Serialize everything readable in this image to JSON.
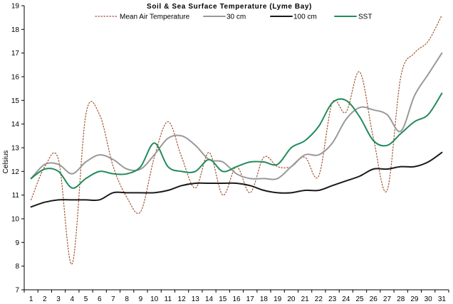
{
  "chart_data": {
    "type": "line",
    "title": "Soil & Sea Surface Temperature (Lyme Bay)",
    "xlabel": "",
    "ylabel": "Celsius",
    "x": [
      1,
      2,
      3,
      4,
      5,
      6,
      7,
      8,
      9,
      10,
      11,
      12,
      13,
      14,
      15,
      16,
      17,
      18,
      19,
      20,
      21,
      22,
      23,
      24,
      25,
      26,
      27,
      28,
      29,
      30,
      31
    ],
    "ylim": [
      7,
      19
    ],
    "yticks": [
      7,
      8,
      9,
      10,
      11,
      12,
      13,
      14,
      15,
      16,
      17,
      18,
      19
    ],
    "grid": false,
    "legend_position": "top",
    "series": [
      {
        "name": "Mean Air Temperature",
        "color": "#A0522D",
        "style": "dotted",
        "values": [
          10.8,
          12.2,
          12.5,
          8.1,
          14.4,
          14.4,
          12.2,
          10.9,
          10.3,
          12.6,
          14.1,
          12.6,
          11.3,
          12.8,
          11.0,
          12.2,
          11.1,
          12.6,
          12.2,
          12.2,
          12.6,
          11.8,
          14.9,
          14.5,
          16.2,
          13.4,
          11.2,
          16.0,
          17.0,
          17.5,
          18.6
        ]
      },
      {
        "name": "30 cm",
        "color": "#999999",
        "style": "solid",
        "values": [
          11.7,
          12.3,
          12.3,
          11.9,
          12.4,
          12.7,
          12.5,
          12.1,
          12.1,
          12.7,
          13.4,
          13.5,
          13.1,
          12.5,
          12.4,
          11.9,
          11.7,
          11.7,
          11.7,
          12.2,
          12.7,
          12.7,
          13.2,
          14.2,
          14.7,
          14.6,
          14.4,
          13.7,
          15.2,
          16.1,
          17.0
        ]
      },
      {
        "name": "100 cm",
        "color": "#1a1a1a",
        "style": "solid",
        "values": [
          10.5,
          10.7,
          10.8,
          10.8,
          10.8,
          10.8,
          11.1,
          11.1,
          11.1,
          11.1,
          11.2,
          11.4,
          11.5,
          11.5,
          11.5,
          11.5,
          11.4,
          11.2,
          11.1,
          11.1,
          11.2,
          11.2,
          11.4,
          11.6,
          11.8,
          12.1,
          12.1,
          12.2,
          12.2,
          12.4,
          12.8
        ]
      },
      {
        "name": "SST",
        "color": "#228B5A",
        "style": "solid",
        "values": [
          11.7,
          12.1,
          12.0,
          11.3,
          11.7,
          12.0,
          11.9,
          11.9,
          12.2,
          13.2,
          12.2,
          12.0,
          12.0,
          12.5,
          12.0,
          12.2,
          12.4,
          12.4,
          12.3,
          13.0,
          13.3,
          13.9,
          14.9,
          15.0,
          14.3,
          13.3,
          13.1,
          13.6,
          14.1,
          14.4,
          15.3
        ]
      }
    ]
  }
}
